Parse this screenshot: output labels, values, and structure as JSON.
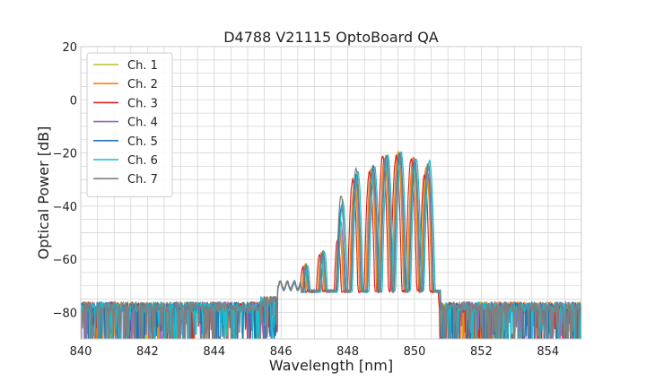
{
  "chart_data": {
    "type": "line",
    "title": "D4788 V21115 OptoBoard QA",
    "xlabel": "Wavelength [nm]",
    "ylabel": "Optical Power [dB]",
    "xlim": [
      840,
      855
    ],
    "ylim": [
      -90,
      20
    ],
    "xticks": [
      840,
      842,
      844,
      846,
      848,
      850,
      852,
      854
    ],
    "yticks": [
      20,
      0,
      -20,
      -40,
      -60,
      -80
    ],
    "x_minor_step": 0.5,
    "y_minor_step": 5,
    "grid": true,
    "legend_position": "top-left",
    "series": [
      {
        "name": "Ch. 1",
        "color": "#bcbd22",
        "noise_floor": -80,
        "peak_shift": 0.02,
        "peaks": [
          {
            "x": 846.7,
            "y": -62
          },
          {
            "x": 847.2,
            "y": -57
          },
          {
            "x": 847.75,
            "y": -48
          },
          {
            "x": 848.2,
            "y": -30
          },
          {
            "x": 848.7,
            "y": -27
          },
          {
            "x": 849.1,
            "y": -22
          },
          {
            "x": 849.5,
            "y": -20
          },
          {
            "x": 849.95,
            "y": -23
          },
          {
            "x": 850.35,
            "y": -26
          }
        ]
      },
      {
        "name": "Ch. 2",
        "color": "#ff7f0e",
        "noise_floor": -80,
        "peak_shift": 0.0,
        "peaks": [
          {
            "x": 846.7,
            "y": -63
          },
          {
            "x": 847.2,
            "y": -58
          },
          {
            "x": 847.75,
            "y": -50
          },
          {
            "x": 848.2,
            "y": -31
          },
          {
            "x": 848.7,
            "y": -26
          },
          {
            "x": 849.1,
            "y": -22
          },
          {
            "x": 849.5,
            "y": -20
          },
          {
            "x": 849.95,
            "y": -22
          },
          {
            "x": 850.35,
            "y": -25
          }
        ]
      },
      {
        "name": "Ch. 3",
        "color": "#d62728",
        "noise_floor": -80,
        "peak_shift": -0.05,
        "peaks": [
          {
            "x": 846.7,
            "y": -63
          },
          {
            "x": 847.2,
            "y": -58
          },
          {
            "x": 847.75,
            "y": -52
          },
          {
            "x": 848.2,
            "y": -30
          },
          {
            "x": 848.7,
            "y": -27
          },
          {
            "x": 849.1,
            "y": -21
          },
          {
            "x": 849.5,
            "y": -21
          },
          {
            "x": 849.95,
            "y": -22
          },
          {
            "x": 850.35,
            "y": -28
          }
        ]
      },
      {
        "name": "Ch. 4",
        "color": "#9467bd",
        "noise_floor": -80,
        "peak_shift": 0.04,
        "peaks": [
          {
            "x": 846.7,
            "y": -62
          },
          {
            "x": 847.2,
            "y": -57
          },
          {
            "x": 847.75,
            "y": -46
          },
          {
            "x": 848.2,
            "y": -29
          },
          {
            "x": 848.7,
            "y": -26
          },
          {
            "x": 849.1,
            "y": -21
          },
          {
            "x": 849.5,
            "y": -20
          },
          {
            "x": 849.95,
            "y": -23
          },
          {
            "x": 850.35,
            "y": -27
          }
        ]
      },
      {
        "name": "Ch. 5",
        "color": "#1f77b4",
        "noise_floor": -80,
        "peak_shift": 0.06,
        "peaks": [
          {
            "x": 846.7,
            "y": -62
          },
          {
            "x": 847.2,
            "y": -57
          },
          {
            "x": 847.75,
            "y": -40
          },
          {
            "x": 848.2,
            "y": -28
          },
          {
            "x": 848.7,
            "y": -25
          },
          {
            "x": 849.1,
            "y": -21
          },
          {
            "x": 849.5,
            "y": -20
          },
          {
            "x": 849.95,
            "y": -23
          },
          {
            "x": 850.35,
            "y": -24
          }
        ]
      },
      {
        "name": "Ch. 6",
        "color": "#17becf",
        "noise_floor": -80,
        "peak_shift": 0.1,
        "peaks": [
          {
            "x": 846.7,
            "y": -62
          },
          {
            "x": 847.2,
            "y": -57
          },
          {
            "x": 847.75,
            "y": -38
          },
          {
            "x": 848.2,
            "y": -27
          },
          {
            "x": 848.7,
            "y": -25
          },
          {
            "x": 849.1,
            "y": -21
          },
          {
            "x": 849.5,
            "y": -20
          },
          {
            "x": 849.95,
            "y": -22
          },
          {
            "x": 850.35,
            "y": -23
          }
        ]
      },
      {
        "name": "Ch. 7",
        "color": "#7f7f7f",
        "noise_floor": -80,
        "peak_shift": 0.05,
        "peaks": [
          {
            "x": 846.7,
            "y": -62
          },
          {
            "x": 847.2,
            "y": -57
          },
          {
            "x": 847.75,
            "y": -36
          },
          {
            "x": 848.2,
            "y": -26
          },
          {
            "x": 848.7,
            "y": -25
          },
          {
            "x": 849.1,
            "y": -21
          },
          {
            "x": 849.5,
            "y": -20
          },
          {
            "x": 849.95,
            "y": -22
          },
          {
            "x": 850.35,
            "y": -24
          }
        ]
      }
    ]
  }
}
